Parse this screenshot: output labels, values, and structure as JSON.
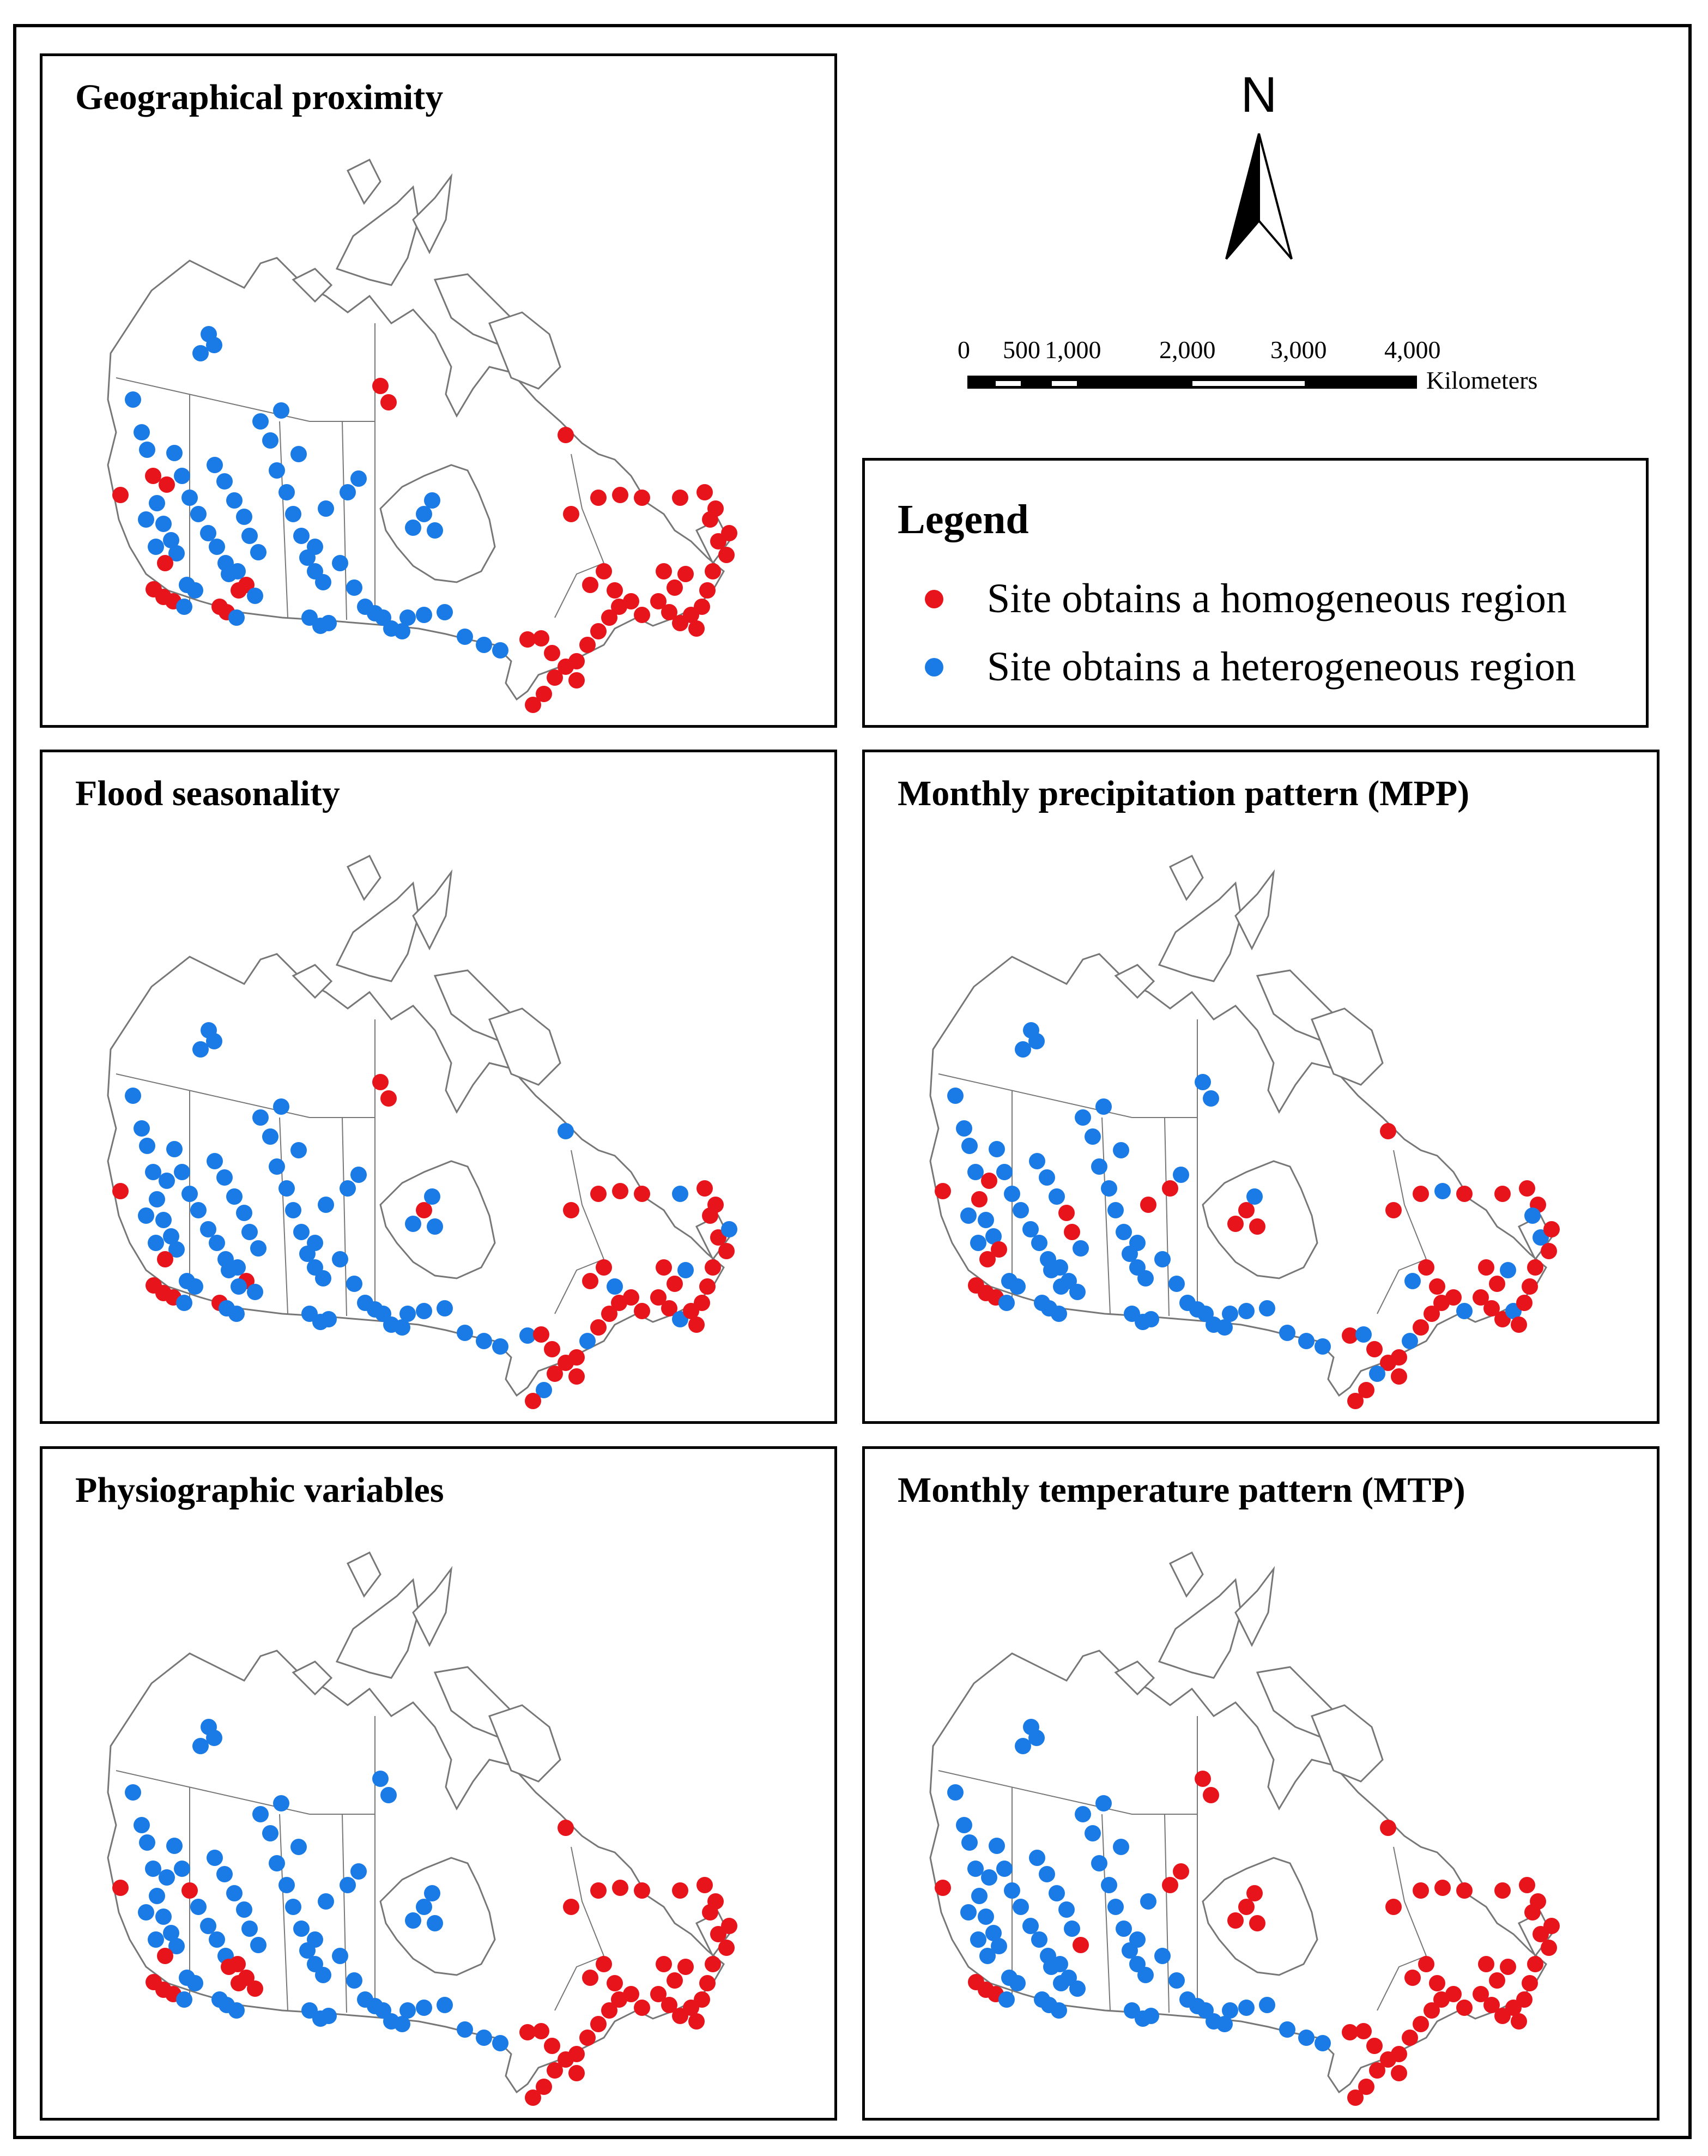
{
  "panels": [
    {
      "id": "p1",
      "title": "Geographical proximity"
    },
    {
      "id": "p2",
      "title": "Flood seasonality"
    },
    {
      "id": "p3",
      "title": "Monthly precipitation pattern (MPP)"
    },
    {
      "id": "p4",
      "title": "Physiographic variables"
    },
    {
      "id": "p5",
      "title": "Monthly temperature pattern (MTP)"
    }
  ],
  "north_label": "N",
  "scale": {
    "ticks": [
      "0",
      "500",
      "1,000",
      "2,000",
      "3,000",
      "4,000"
    ],
    "unit": "Kilometers"
  },
  "legend": {
    "title": "Legend",
    "items": [
      {
        "label": "Site obtains a homogeneous region",
        "color": "#e8141c"
      },
      {
        "label": "Site obtains a heterogeneous region",
        "color": "#1a7be6"
      }
    ]
  },
  "colors": {
    "homogeneous": "#e8141c",
    "heterogeneous": "#1a7be6",
    "outline": "#777777"
  }
}
